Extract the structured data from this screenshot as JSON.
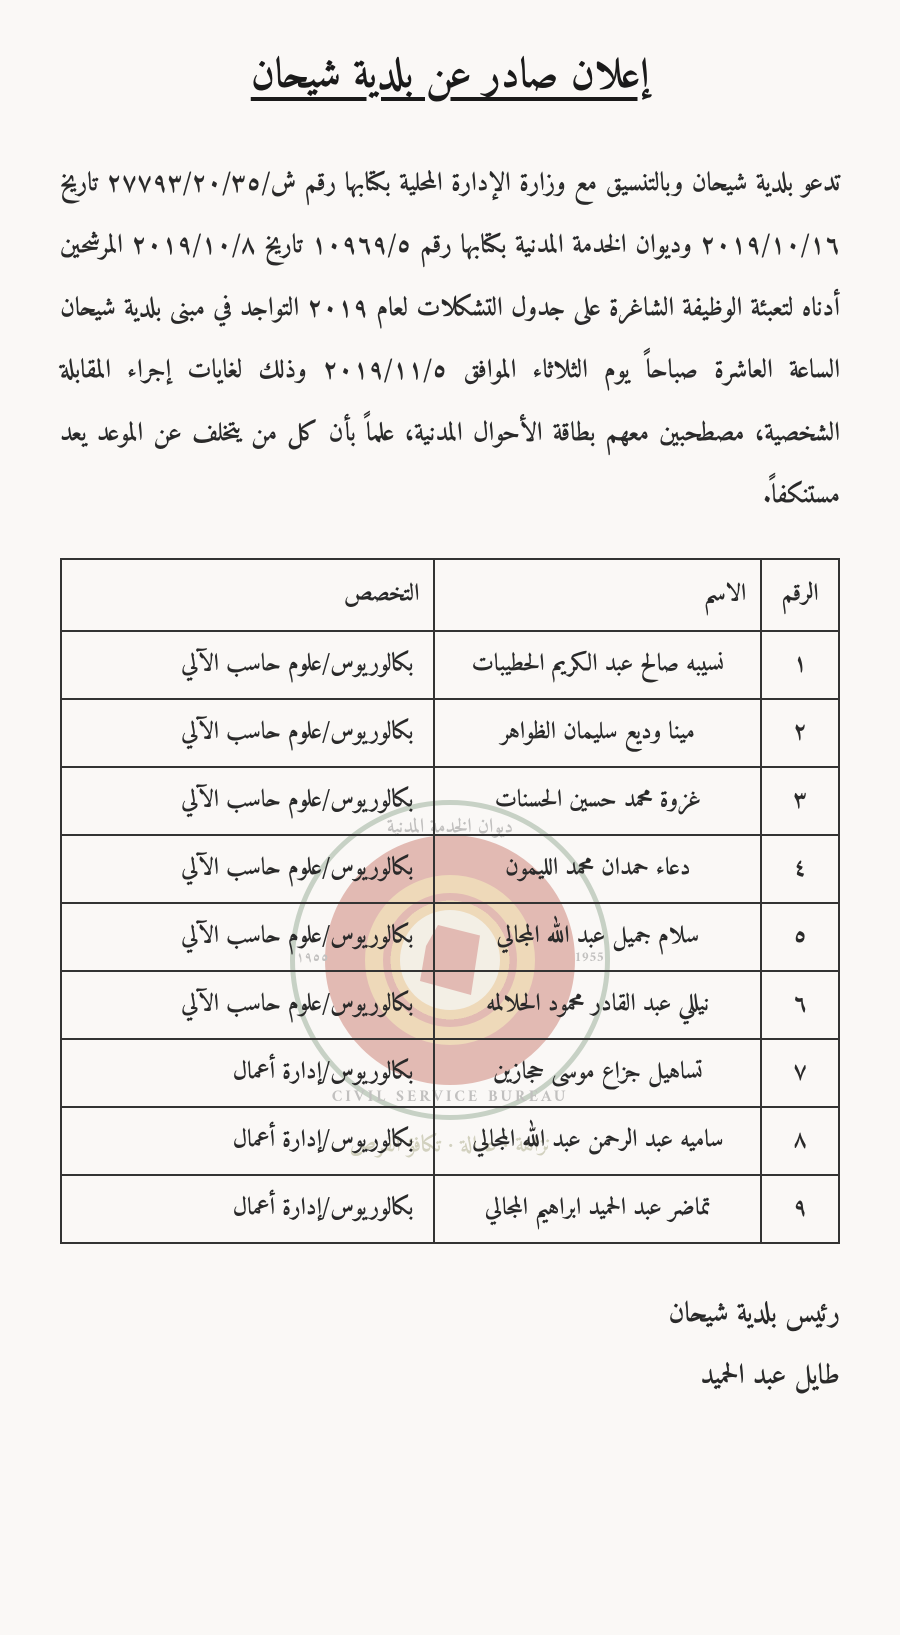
{
  "title": "إعلان صادر عن بلدية شيحان",
  "paragraph": "تدعو بلدية شيحان وبالتنسيق مع وزارة الإدارة المحلية بكتابها رقم ش/٢٧٧٩٣/٢٠/٣٥ تاريخ ٢٠١٩/١٠/١٦ وديوان الخدمة المدنية بكتابها رقم ١٠٩٦٩/٥ تاريخ ٢٠١٩/١٠/٨ المرشحين أدناه لتعبئة الوظيفة الشاغرة على جدول التشكلات لعام ٢٠١٩ التواجد في مبنى بلدية شيحان الساعة العاشرة صباحاً يوم الثلاثاء الموافق ٢٠١٩/١١/٥ وذلك لغايات إجراء المقابلة الشخصية، مصطحبين معهم بطاقة الأحوال المدنية، علماً بأن كل من يتخلف عن الموعد يعد مستنكفاً.",
  "table": {
    "headers": {
      "num": "الرقم",
      "name": "الاسم",
      "spec": "التخصص"
    },
    "rows": [
      {
        "num": "١",
        "name": "نسيبه صالح عبد الكريم الحطيبات",
        "spec": "بكالوريوس/علوم حاسب الآلي"
      },
      {
        "num": "٢",
        "name": "مينا وديع سليمان الظواهر",
        "spec": "بكالوريوس/علوم حاسب الآلي"
      },
      {
        "num": "٣",
        "name": "غزوة محمد حسين الحسنات",
        "spec": "بكالوريوس/علوم حاسب الآلي"
      },
      {
        "num": "٤",
        "name": "دعاء حمدان محمد الليمون",
        "spec": "بكالوريوس/علوم حاسب الآلي"
      },
      {
        "num": "٥",
        "name": "سلام جميل عبد الله المجالي",
        "spec": "بكالوريوس/علوم حاسب الآلي"
      },
      {
        "num": "٦",
        "name": "نيللي عبد القادر محمود الحلالمه",
        "spec": "بكالوريوس/علوم حاسب الآلي"
      },
      {
        "num": "٧",
        "name": "تساهيل جزاع موسى حجازين",
        "spec": "بكالوريوس/إدارة أعمال"
      },
      {
        "num": "٨",
        "name": "ساميه عبد الرحمن عبد الله المجالي",
        "spec": "بكالوريوس/إدارة أعمال"
      },
      {
        "num": "٩",
        "name": "تماضر عبد الحميد ابراهيم المجالي",
        "spec": "بكالوريوس/إدارة أعمال"
      }
    ]
  },
  "footer": {
    "line1": "رئيس بلدية شيحان",
    "line2": "طايل عبد الحميد"
  },
  "watermark": {
    "top_ar": "ديوان الخدمة المدنية",
    "bottom_en": "CIVIL SERVICE BUREAU",
    "year_l": "١٩٥٥",
    "year_r": "1955",
    "slogan": "نزاهة · عدالة · تكافؤ الفرص",
    "colors": {
      "outer_ring": "#6b8a6b",
      "red_ring": "#b84a3a",
      "gold_ring": "#d9a24a",
      "center": "#e8dfc8"
    }
  }
}
